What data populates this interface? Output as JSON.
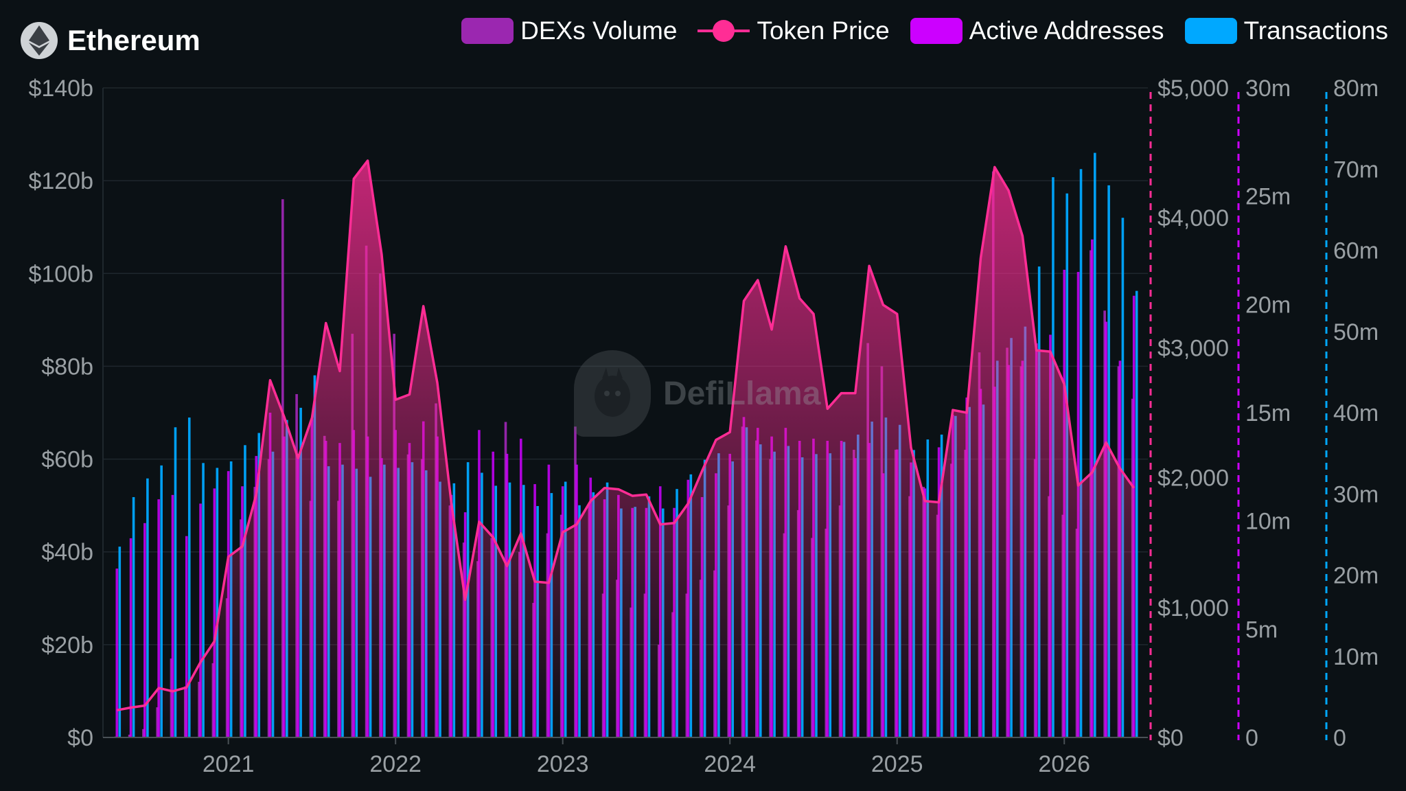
{
  "header": {
    "title": "Ethereum",
    "icon": "ethereum-icon"
  },
  "legend": [
    {
      "label": "DEXs Volume",
      "color": "#9b27b0",
      "kind": "bar"
    },
    {
      "label": "Token Price",
      "color": "#ff2d95",
      "kind": "line"
    },
    {
      "label": "Active Addresses",
      "color": "#cc00ff",
      "kind": "bar"
    },
    {
      "label": "Transactions",
      "color": "#00a8ff",
      "kind": "bar"
    }
  ],
  "watermark": "DefiLlama",
  "chart_data": {
    "type": "bar",
    "title": "Ethereum",
    "x_ticks": [
      "2021",
      "2022",
      "2023",
      "2024",
      "2025",
      "2026"
    ],
    "x_range": [
      "2020-04",
      "2026-07"
    ],
    "axes": [
      {
        "id": "dex",
        "side": "left",
        "ticks": [
          "$0",
          "$20b",
          "$40b",
          "$60b",
          "$80b",
          "$100b",
          "$120b",
          "$140b"
        ],
        "range": [
          0,
          140
        ],
        "unit": "b USD"
      },
      {
        "id": "price",
        "side": "right",
        "ticks": [
          "$0",
          "$1,000",
          "$2,000",
          "$3,000",
          "$4,000",
          "$5,000"
        ],
        "range": [
          0,
          5000
        ],
        "unit": "USD",
        "color": "#ff2d95"
      },
      {
        "id": "addr",
        "side": "right",
        "ticks": [
          "0",
          "5m",
          "10m",
          "15m",
          "20m",
          "25m",
          "30m"
        ],
        "range": [
          0,
          30
        ],
        "unit": "m",
        "color": "#cc00ff"
      },
      {
        "id": "tx",
        "side": "right",
        "ticks": [
          "0",
          "10m",
          "20m",
          "30m",
          "40m",
          "50m",
          "60m",
          "70m",
          "80m"
        ],
        "range": [
          0,
          80
        ],
        "unit": "m",
        "color": "#00a8ff"
      }
    ],
    "grid": true,
    "legend_position": "top-right",
    "months": [
      "2020-05",
      "2020-06",
      "2020-07",
      "2020-08",
      "2020-09",
      "2020-10",
      "2020-11",
      "2020-12",
      "2021-01",
      "2021-02",
      "2021-03",
      "2021-04",
      "2021-05",
      "2021-06",
      "2021-07",
      "2021-08",
      "2021-09",
      "2021-10",
      "2021-11",
      "2021-12",
      "2022-01",
      "2022-02",
      "2022-03",
      "2022-04",
      "2022-05",
      "2022-06",
      "2022-07",
      "2022-08",
      "2022-09",
      "2022-10",
      "2022-11",
      "2022-12",
      "2023-01",
      "2023-02",
      "2023-03",
      "2023-04",
      "2023-05",
      "2023-06",
      "2023-07",
      "2023-08",
      "2023-09",
      "2023-10",
      "2023-11",
      "2023-12",
      "2024-01",
      "2024-02",
      "2024-03",
      "2024-04",
      "2024-05",
      "2024-06",
      "2024-07",
      "2024-08",
      "2024-09",
      "2024-10",
      "2024-11",
      "2024-12",
      "2025-01",
      "2025-02",
      "2025-03",
      "2025-04",
      "2025-05",
      "2025-06",
      "2025-07",
      "2025-08",
      "2025-09",
      "2025-10",
      "2025-11",
      "2025-12",
      "2026-01",
      "2026-02",
      "2026-03",
      "2026-04",
      "2026-05",
      "2026-06"
    ],
    "series": [
      {
        "name": "DEXs Volume",
        "axis": "dex",
        "color": "#9b27b0",
        "values": [
          0.2,
          0.6,
          1.8,
          6.5,
          17,
          11,
          12,
          16,
          30,
          47,
          54,
          60,
          116,
          74,
          51,
          65,
          51,
          87,
          106,
          100,
          87,
          61,
          60,
          72,
          50,
          42,
          38,
          43,
          68,
          40,
          29,
          44,
          48,
          67,
          50,
          31,
          34,
          28,
          31,
          20,
          27,
          31,
          34,
          36,
          50,
          67,
          64,
          60,
          44,
          49,
          43,
          45,
          50,
          62,
          85,
          80,
          62,
          52,
          54,
          48,
          59,
          62,
          83,
          122,
          84,
          80,
          60,
          52,
          48,
          45,
          105,
          92,
          80,
          73
        ]
      },
      {
        "name": "Token Price",
        "axis": "price",
        "color": "#ff2d95",
        "values": [
          210,
          230,
          245,
          380,
          355,
          385,
          580,
          740,
          1390,
          1470,
          1870,
          2750,
          2470,
          2150,
          2460,
          3190,
          2820,
          4300,
          4440,
          3720,
          2600,
          2640,
          3320,
          2730,
          1810,
          1060,
          1660,
          1540,
          1320,
          1570,
          1200,
          1190,
          1580,
          1640,
          1820,
          1920,
          1910,
          1860,
          1870,
          1640,
          1650,
          1800,
          2050,
          2290,
          2350,
          3360,
          3520,
          3140,
          3780,
          3380,
          3260,
          2530,
          2650,
          2650,
          3630,
          3330,
          3260,
          2230,
          1820,
          1810,
          2520,
          2500,
          3690,
          4390,
          4210,
          3860,
          2980,
          2970,
          2720,
          1940,
          2040,
          2270,
          2070,
          1920
        ]
      },
      {
        "name": "Active Addresses",
        "axis": "addr",
        "color": "#cc00ff",
        "values": [
          7.8,
          9.2,
          9.9,
          11.0,
          11.2,
          9.3,
          10.8,
          11.5,
          12.3,
          11.6,
          13.0,
          15.0,
          13.9,
          13.1,
          14.7,
          13.7,
          13.6,
          14.2,
          13.9,
          12.9,
          14.2,
          13.6,
          14.6,
          13.9,
          11.2,
          10.4,
          14.2,
          13.2,
          13.1,
          13.8,
          11.7,
          12.6,
          11.6,
          12.6,
          12.0,
          11.0,
          11.2,
          10.6,
          10.6,
          11.6,
          10.6,
          11.9,
          11.1,
          12.2,
          13.1,
          14.8,
          14.3,
          13.9,
          14.3,
          13.7,
          13.8,
          13.7,
          13.7,
          12.9,
          13.6,
          12.2,
          13.3,
          12.7,
          11.5,
          13.4,
          14.9,
          15.7,
          16.1,
          16.2,
          17.2,
          17.4,
          18.2,
          18.6,
          21.6,
          21.5,
          23.0,
          19.2,
          17.4,
          20.4
        ]
      },
      {
        "name": "Transactions",
        "axis": "tx",
        "color": "#00a8ff",
        "values": [
          23.5,
          29.6,
          31.9,
          33.5,
          38.2,
          39.4,
          33.8,
          33.2,
          34.0,
          36.0,
          37.5,
          35.2,
          39.1,
          40.6,
          44.6,
          33.4,
          33.6,
          33.1,
          32.1,
          33.6,
          33.2,
          33.9,
          32.9,
          31.5,
          31.3,
          33.9,
          32.6,
          31.0,
          31.4,
          31.1,
          28.5,
          30.1,
          31.5,
          28.6,
          30.2,
          31.4,
          28.2,
          28.4,
          29.7,
          28.2,
          30.6,
          32.4,
          34.2,
          35.0,
          34.0,
          38.2,
          36.1,
          35.2,
          35.9,
          34.5,
          34.9,
          35.0,
          36.4,
          37.3,
          38.9,
          39.4,
          38.5,
          35.4,
          36.7,
          37.3,
          39.6,
          40.7,
          41.0,
          46.4,
          49.2,
          50.6,
          58.0,
          69.0,
          67.0,
          70.0,
          72.0,
          68.0,
          64.0,
          55.0
        ]
      }
    ]
  }
}
